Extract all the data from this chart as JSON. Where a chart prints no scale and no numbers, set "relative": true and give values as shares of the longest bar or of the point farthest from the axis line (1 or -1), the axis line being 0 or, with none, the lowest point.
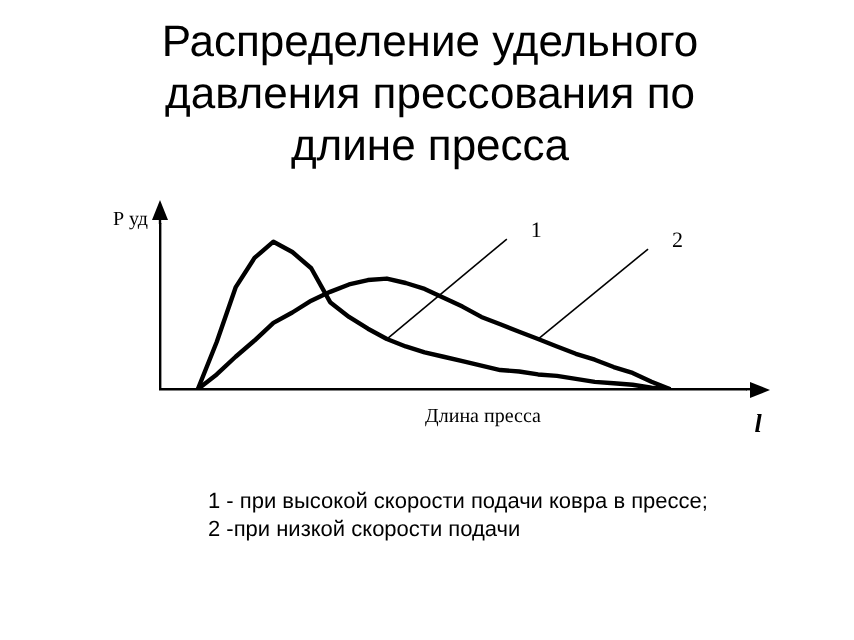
{
  "chart_data": {
    "type": "line",
    "title": "Распределение удельного давления прессования по длине пресса",
    "ylabel": "Р уд",
    "xlabel": "Длина пресса",
    "relative": true,
    "legend": false,
    "grid": false,
    "marker": "none",
    "line_style": "solid",
    "categories": [
      null,
      null,
      null,
      null,
      null,
      null,
      null,
      null,
      null,
      null,
      null,
      null,
      null,
      null,
      null,
      null,
      null,
      null,
      null,
      null,
      null,
      null,
      null,
      null,
      null,
      null,
      null,
      null,
      null,
      null,
      null,
      null
    ],
    "series": [
      {
        "name": "1",
        "color": "#000000",
        "values": [
          null,
          null,
          0,
          0.32,
          0.69,
          0.89,
          1,
          0.93,
          0.82,
          0.59,
          0.49,
          0.41,
          0.34,
          0.29,
          0.25,
          0.22,
          0.19,
          0.16,
          0.13,
          0.12,
          0.1,
          0.09,
          0.07,
          0.05,
          0.04,
          0.03,
          0.01,
          0,
          null,
          null,
          null,
          null
        ]
      },
      {
        "name": "2",
        "color": "#000000",
        "values": [
          null,
          null,
          0,
          0.1,
          0.22,
          0.33,
          0.45,
          0.52,
          0.6,
          0.66,
          0.71,
          0.74,
          0.75,
          0.72,
          0.68,
          0.62,
          0.56,
          0.49,
          0.44,
          0.39,
          0.34,
          0.29,
          0.24,
          0.2,
          0.15,
          0.11,
          0.05,
          0,
          null,
          null,
          null,
          null
        ]
      }
    ],
    "annotations": [
      "l",
      "1 - при высокой скорости подачи ковра в прессе;",
      "2 -при низкой скорости подачи"
    ]
  }
}
